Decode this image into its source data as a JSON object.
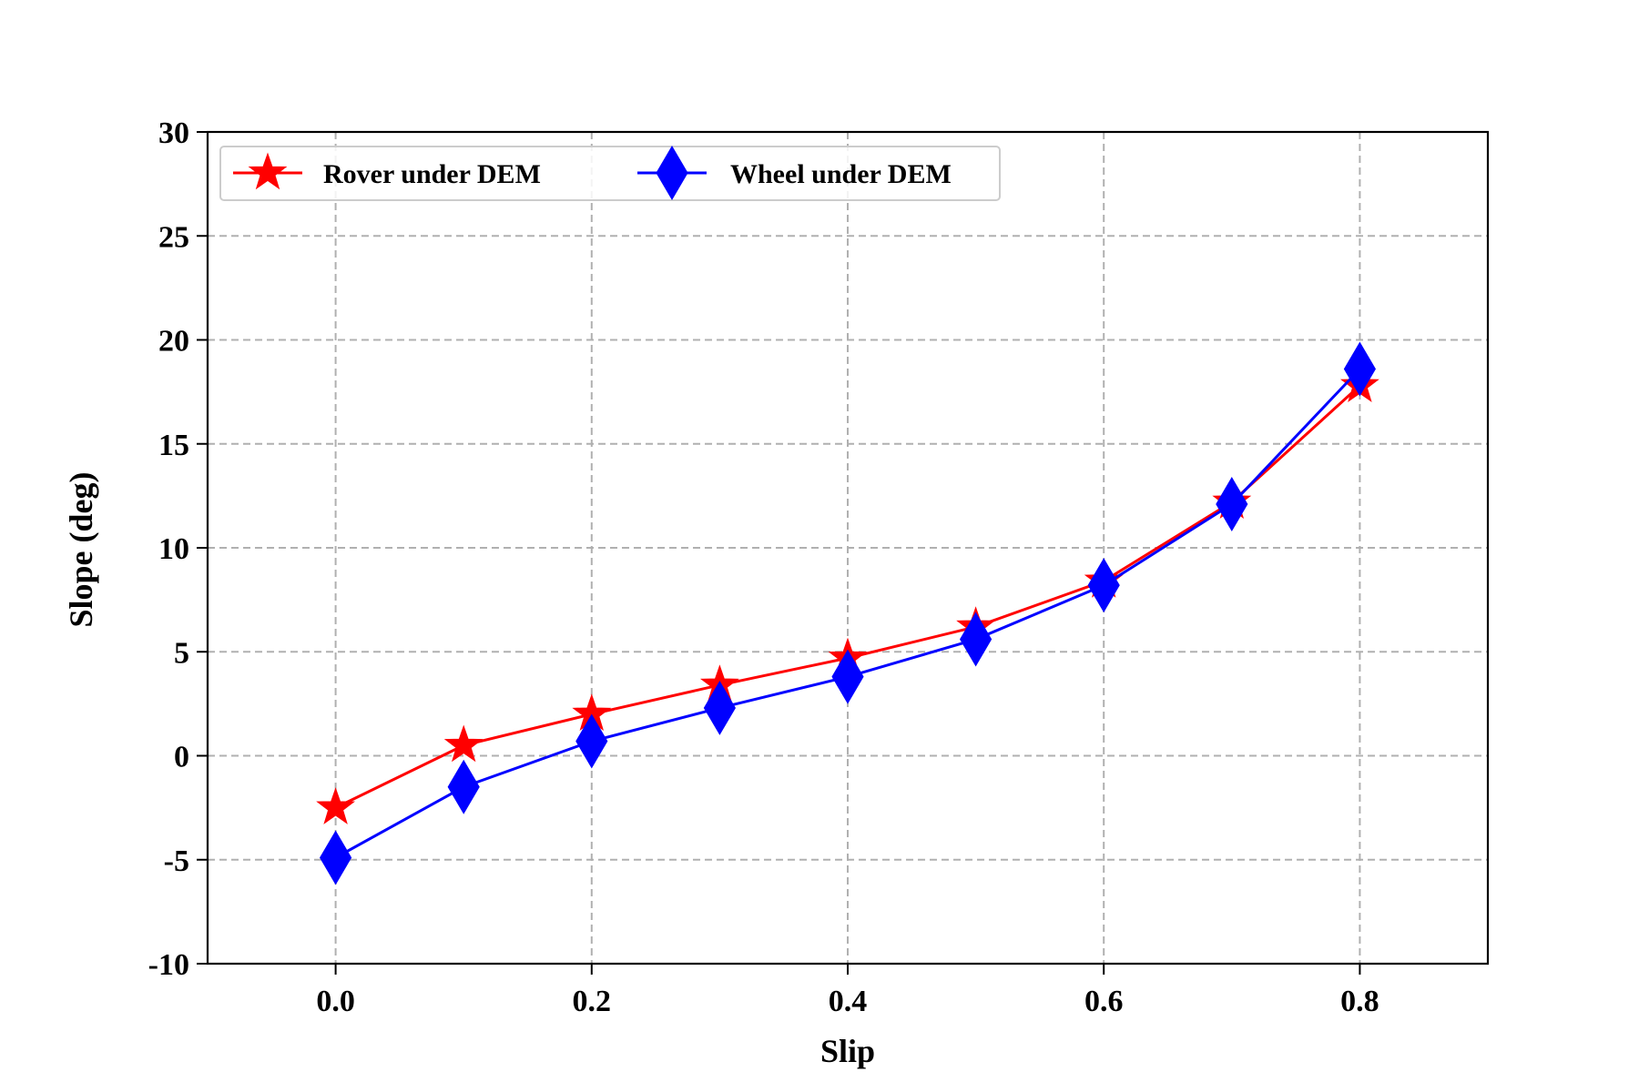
{
  "chart_data": {
    "type": "line",
    "title": "",
    "xlabel": "Slip",
    "ylabel": "Slope (deg)",
    "xlim": [
      -0.1,
      0.9
    ],
    "ylim": [
      -10,
      30
    ],
    "xticks": [
      0.0,
      0.2,
      0.4,
      0.6,
      0.8
    ],
    "xtick_labels": [
      "0.0",
      "0.2",
      "0.4",
      "0.6",
      "0.8"
    ],
    "yticks": [
      -10,
      -5,
      0,
      5,
      10,
      15,
      20,
      25,
      30
    ],
    "ytick_labels": [
      "-10",
      "-5",
      "0",
      "5",
      "10",
      "15",
      "20",
      "25",
      "30"
    ],
    "grid": true,
    "grid_style": "dashed",
    "legend_position": "top-left",
    "legend_columns": 2,
    "series": [
      {
        "name": "Rover under DEM",
        "color": "#ff0000",
        "marker": "star",
        "x": [
          0.0,
          0.1,
          0.2,
          0.3,
          0.4,
          0.5,
          0.6,
          0.7,
          0.8
        ],
        "y": [
          -2.5,
          0.5,
          2.0,
          3.4,
          4.7,
          6.2,
          8.4,
          12.2,
          17.8
        ]
      },
      {
        "name": "Wheel under DEM",
        "color": "#0000ff",
        "marker": "diamond",
        "x": [
          0.0,
          0.1,
          0.2,
          0.3,
          0.4,
          0.5,
          0.6,
          0.7,
          0.8
        ],
        "y": [
          -4.9,
          -1.5,
          0.7,
          2.3,
          3.8,
          5.6,
          8.2,
          12.1,
          18.6
        ]
      }
    ]
  }
}
